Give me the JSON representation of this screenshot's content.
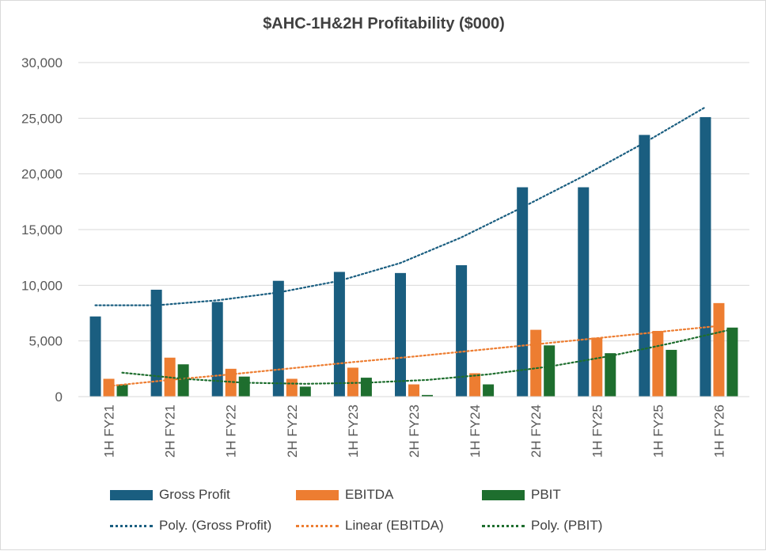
{
  "chart_data": {
    "type": "bar",
    "title": "$AHC-1H&2H Profitability ($000)",
    "xlabel": "",
    "ylabel": "",
    "ylim": [
      0,
      30000
    ],
    "yticks": [
      0,
      5000,
      10000,
      15000,
      20000,
      25000,
      30000
    ],
    "ytick_labels": [
      "0",
      "5,000",
      "10,000",
      "15,000",
      "20,000",
      "25,000",
      "30,000"
    ],
    "grid": true,
    "legend_position": "bottom",
    "categories": [
      "1H FY21",
      "2H FY21",
      "1H FY22",
      "2H FY22",
      "1H FY23",
      "2H FY23",
      "1H FY24",
      "2H FY24",
      "1H FY25",
      "1H FY25",
      "1H FY26"
    ],
    "series": [
      {
        "name": "Gross Profit",
        "color": "#1a5e80",
        "values": [
          7200,
          9600,
          8500,
          10400,
          11200,
          11100,
          11800,
          18800,
          18800,
          23500,
          25100
        ]
      },
      {
        "name": "EBITDA",
        "color": "#ed7d31",
        "values": [
          1600,
          3500,
          2500,
          1600,
          2600,
          1100,
          2100,
          6000,
          5300,
          5900,
          8400
        ]
      },
      {
        "name": "PBIT",
        "color": "#1e6e2e",
        "values": [
          1100,
          2900,
          1800,
          900,
          1700,
          150,
          1100,
          4600,
          3900,
          4200,
          6200
        ]
      }
    ],
    "trendlines": [
      {
        "name": "Poly. (Gross Profit)",
        "type": "poly",
        "series_index": 0,
        "color": "#1a5e80",
        "values": [
          8200,
          8200,
          8650,
          9350,
          10400,
          12000,
          14300,
          17000,
          19800,
          22800,
          26000
        ]
      },
      {
        "name": "Linear (EBITDA)",
        "type": "linear",
        "series_index": 1,
        "color": "#ed7d31",
        "values": [
          950,
          1500,
          2000,
          2550,
          3100,
          3600,
          4150,
          4700,
          5250,
          5800,
          6350
        ]
      },
      {
        "name": "Poly. (PBIT)",
        "type": "poly",
        "series_index": 2,
        "color": "#1e6e2e",
        "values": [
          2150,
          1600,
          1250,
          1150,
          1250,
          1500,
          2000,
          2700,
          3650,
          4800,
          6050
        ]
      }
    ]
  }
}
